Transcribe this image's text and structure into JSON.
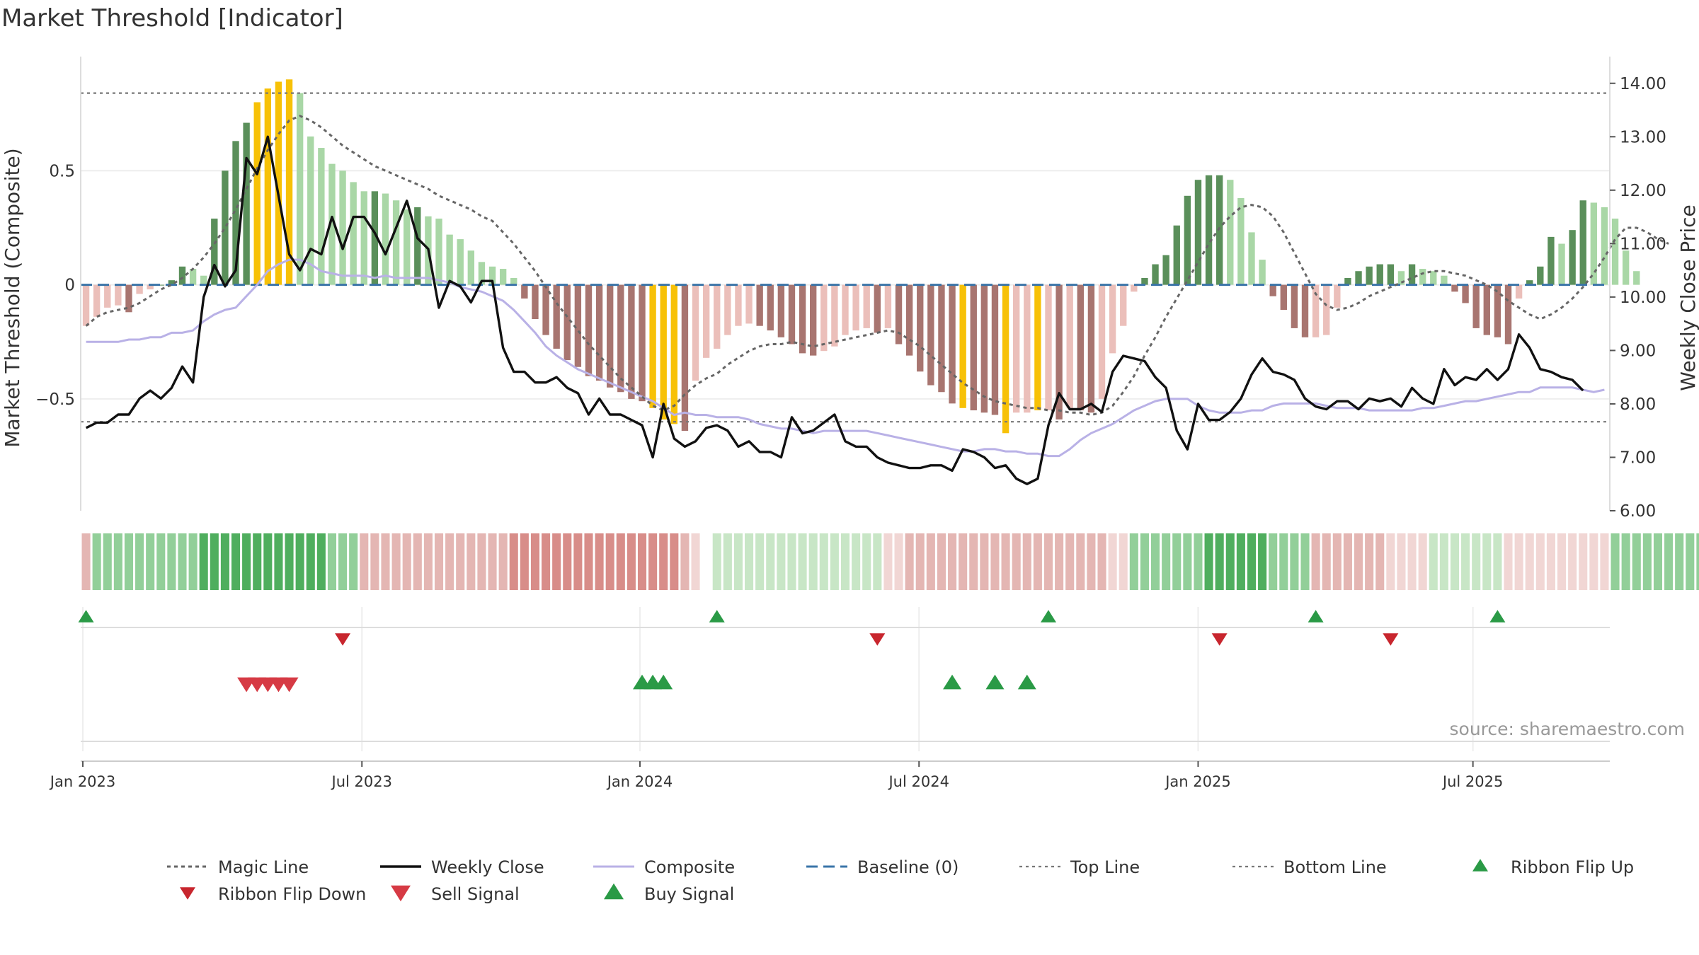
{
  "title": "Market Threshold [Indicator]",
  "source": "source: sharemaestro.com",
  "colors": {
    "green_strong": "#5a8f5a",
    "green_light": "#a9d7a6",
    "red_strong": "#a87570",
    "red_light": "#ebbfba",
    "yellow": "#f7c107",
    "close_line": "#111111",
    "composite_line": "#b9b1e6",
    "magic_line": "#666666",
    "baseline": "#3a74a8",
    "signal_up": "#2a9a46",
    "signal_down": "#d63a44"
  },
  "chart_data": {
    "type": "bar",
    "title": "Market Threshold [Indicator]",
    "ylabel_left": "Market Threshold (Composite)",
    "ylabel_right": "Weekly Close Price",
    "ylim_left": [
      -0.99,
      1.0
    ],
    "ylim_right": [
      6.0,
      14.5
    ],
    "yticks_left": [
      "0.5",
      "0",
      "−0.5"
    ],
    "yticks_left_values": [
      0.5,
      0,
      -0.5
    ],
    "yticks_right": [
      "6.00",
      "7.00",
      "8.00",
      "9.00",
      "10.00",
      "11.00",
      "12.00",
      "13.00",
      "14.00"
    ],
    "x_ticks": [
      "Jan 2023",
      "Jul 2023",
      "Jan 2024",
      "Jul 2024",
      "Jan 2025",
      "Jul 2025"
    ],
    "x_tick_weeks": [
      0.2,
      26.3,
      52.3,
      78.4,
      104.5,
      130.2
    ],
    "top_line": 0.84,
    "bottom_line": -0.6,
    "baseline": 0,
    "weeks": 143,
    "composite_bars": [
      -0.18,
      -0.14,
      -0.1,
      -0.09,
      -0.12,
      -0.04,
      -0.02,
      0.0,
      0.02,
      0.08,
      0.07,
      0.04,
      0.29,
      0.5,
      0.63,
      0.71,
      0.8,
      0.86,
      0.89,
      0.9,
      0.84,
      0.65,
      0.6,
      0.53,
      0.5,
      0.45,
      0.41,
      0.41,
      0.4,
      0.37,
      0.33,
      0.34,
      0.3,
      0.29,
      0.22,
      0.2,
      0.15,
      0.1,
      0.08,
      0.07,
      0.03,
      -0.06,
      -0.15,
      -0.22,
      -0.28,
      -0.33,
      -0.36,
      -0.4,
      -0.42,
      -0.45,
      -0.47,
      -0.5,
      -0.51,
      -0.54,
      -0.59,
      -0.61,
      -0.64,
      -0.42,
      -0.32,
      -0.28,
      -0.22,
      -0.18,
      -0.17,
      -0.18,
      -0.2,
      -0.23,
      -0.26,
      -0.3,
      -0.31,
      -0.29,
      -0.27,
      -0.22,
      -0.2,
      -0.19,
      -0.21,
      -0.19,
      -0.26,
      -0.31,
      -0.38,
      -0.44,
      -0.47,
      -0.52,
      -0.54,
      -0.55,
      -0.56,
      -0.57,
      -0.65,
      -0.56,
      -0.56,
      -0.55,
      -0.55,
      -0.59,
      -0.54,
      -0.55,
      -0.56,
      -0.5,
      -0.3,
      -0.18,
      -0.03,
      0.03,
      0.09,
      0.13,
      0.26,
      0.39,
      0.46,
      0.48,
      0.48,
      0.46,
      0.38,
      0.23,
      0.11,
      -0.05,
      -0.11,
      -0.19,
      -0.23,
      -0.23,
      -0.22,
      -0.1,
      0.03,
      0.06,
      0.08,
      0.09,
      0.09,
      0.06,
      0.09,
      0.07,
      0.06,
      0.04,
      -0.03,
      -0.08,
      -0.19,
      -0.22,
      -0.23,
      -0.26,
      -0.06,
      0.02,
      0.08,
      0.21,
      0.18,
      0.24,
      0.37,
      0.36,
      0.34,
      0.29,
      0.15,
      0.06
    ],
    "bar_highlight_weeks": [
      16,
      17,
      18,
      19,
      53,
      54,
      55,
      82,
      86,
      89
    ],
    "weekly_close": [
      7.55,
      7.65,
      7.65,
      7.8,
      7.8,
      8.1,
      8.25,
      8.1,
      8.3,
      8.7,
      8.4,
      10.0,
      10.6,
      10.2,
      10.5,
      12.6,
      12.3,
      13.0,
      11.9,
      10.8,
      10.5,
      10.9,
      10.8,
      11.5,
      10.9,
      11.5,
      11.5,
      11.2,
      10.8,
      11.3,
      11.8,
      11.1,
      10.9,
      9.8,
      10.3,
      10.2,
      9.9,
      10.3,
      10.3,
      9.05,
      8.6,
      8.6,
      8.4,
      8.4,
      8.5,
      8.3,
      8.2,
      7.8,
      8.1,
      7.8,
      7.8,
      7.7,
      7.6,
      7.0,
      8.0,
      7.35,
      7.2,
      7.3,
      7.55,
      7.6,
      7.5,
      7.2,
      7.3,
      7.1,
      7.1,
      7.0,
      7.75,
      7.45,
      7.5,
      7.65,
      7.8,
      7.3,
      7.2,
      7.2,
      7.0,
      6.9,
      6.85,
      6.8,
      6.8,
      6.85,
      6.85,
      6.75,
      7.15,
      7.1,
      7.0,
      6.8,
      6.85,
      6.6,
      6.5,
      6.6,
      7.6,
      8.2,
      7.9,
      7.9,
      8.0,
      7.85,
      8.6,
      8.9,
      8.85,
      8.8,
      8.5,
      8.3,
      7.5,
      7.15,
      8.0,
      7.7,
      7.7,
      7.85,
      8.1,
      8.55,
      8.85,
      8.6,
      8.55,
      8.45,
      8.1,
      7.95,
      7.9,
      8.05,
      8.05,
      7.9,
      8.1,
      8.05,
      8.1,
      7.95,
      8.3,
      8.1,
      8.0,
      8.65,
      8.35,
      8.5,
      8.45,
      8.65,
      8.45,
      8.65,
      9.3,
      9.05,
      8.65,
      8.6,
      8.5,
      8.45,
      8.25
    ],
    "magic_line": [
      -0.18,
      -0.14,
      -0.12,
      -0.11,
      -0.1,
      -0.08,
      -0.05,
      -0.02,
      0.0,
      0.03,
      0.07,
      0.12,
      0.18,
      0.25,
      0.33,
      0.42,
      0.51,
      0.59,
      0.66,
      0.72,
      0.74,
      0.72,
      0.69,
      0.65,
      0.61,
      0.58,
      0.55,
      0.52,
      0.5,
      0.48,
      0.46,
      0.44,
      0.42,
      0.39,
      0.37,
      0.35,
      0.33,
      0.3,
      0.28,
      0.23,
      0.18,
      0.12,
      0.06,
      -0.01,
      -0.08,
      -0.14,
      -0.2,
      -0.26,
      -0.31,
      -0.36,
      -0.41,
      -0.45,
      -0.49,
      -0.53,
      -0.55,
      -0.53,
      -0.48,
      -0.44,
      -0.41,
      -0.39,
      -0.35,
      -0.32,
      -0.29,
      -0.27,
      -0.26,
      -0.26,
      -0.25,
      -0.26,
      -0.27,
      -0.26,
      -0.25,
      -0.24,
      -0.23,
      -0.22,
      -0.21,
      -0.2,
      -0.21,
      -0.24,
      -0.27,
      -0.31,
      -0.35,
      -0.39,
      -0.43,
      -0.46,
      -0.49,
      -0.51,
      -0.52,
      -0.53,
      -0.54,
      -0.54,
      -0.55,
      -0.55,
      -0.56,
      -0.56,
      -0.57,
      -0.56,
      -0.53,
      -0.47,
      -0.4,
      -0.31,
      -0.23,
      -0.14,
      -0.06,
      0.02,
      0.1,
      0.18,
      0.25,
      0.3,
      0.34,
      0.35,
      0.34,
      0.3,
      0.23,
      0.14,
      0.05,
      -0.04,
      -0.09,
      -0.11,
      -0.1,
      -0.08,
      -0.05,
      -0.03,
      -0.01,
      0.01,
      0.03,
      0.05,
      0.06,
      0.06,
      0.05,
      0.04,
      0.02,
      0.0,
      -0.03,
      -0.07,
      -0.1,
      -0.13,
      -0.15,
      -0.13,
      -0.1,
      -0.06,
      -0.01,
      0.05,
      0.12,
      0.2,
      0.25,
      0.25,
      0.23,
      0.2,
      0.18
    ],
    "composite_line": [
      -0.25,
      -0.25,
      -0.25,
      -0.25,
      -0.24,
      -0.24,
      -0.23,
      -0.23,
      -0.21,
      -0.21,
      -0.2,
      -0.16,
      -0.13,
      -0.11,
      -0.1,
      -0.05,
      0.0,
      0.06,
      0.09,
      0.11,
      0.11,
      0.09,
      0.06,
      0.05,
      0.04,
      0.04,
      0.04,
      0.03,
      0.04,
      0.03,
      0.03,
      0.03,
      0.03,
      0.02,
      0.01,
      -0.01,
      -0.02,
      -0.03,
      -0.05,
      -0.07,
      -0.11,
      -0.16,
      -0.21,
      -0.27,
      -0.31,
      -0.34,
      -0.37,
      -0.39,
      -0.41,
      -0.43,
      -0.45,
      -0.47,
      -0.49,
      -0.51,
      -0.54,
      -0.57,
      -0.56,
      -0.57,
      -0.57,
      -0.58,
      -0.58,
      -0.58,
      -0.59,
      -0.61,
      -0.62,
      -0.63,
      -0.63,
      -0.64,
      -0.65,
      -0.64,
      -0.64,
      -0.64,
      -0.64,
      -0.64,
      -0.65,
      -0.66,
      -0.67,
      -0.68,
      -0.69,
      -0.7,
      -0.71,
      -0.72,
      -0.73,
      -0.73,
      -0.72,
      -0.72,
      -0.73,
      -0.73,
      -0.74,
      -0.74,
      -0.75,
      -0.75,
      -0.72,
      -0.68,
      -0.65,
      -0.63,
      -0.61,
      -0.58,
      -0.55,
      -0.53,
      -0.51,
      -0.5,
      -0.5,
      -0.5,
      -0.53,
      -0.55,
      -0.56,
      -0.56,
      -0.56,
      -0.55,
      -0.55,
      -0.53,
      -0.52,
      -0.52,
      -0.52,
      -0.52,
      -0.53,
      -0.54,
      -0.54,
      -0.54,
      -0.55,
      -0.55,
      -0.55,
      -0.55,
      -0.55,
      -0.54,
      -0.54,
      -0.53,
      -0.52,
      -0.51,
      -0.51,
      -0.5,
      -0.49,
      -0.48,
      -0.47,
      -0.47,
      -0.45,
      -0.45,
      -0.45,
      -0.45,
      -0.46,
      -0.47,
      -0.46
    ],
    "ribbon": [
      -2,
      2,
      2,
      2,
      2,
      2,
      2,
      2,
      2,
      2,
      2,
      3,
      3,
      3,
      3,
      3,
      3,
      3,
      3,
      3,
      3,
      3,
      3,
      2,
      2,
      2,
      -2,
      -2,
      -2,
      -2,
      -2,
      -2,
      -2,
      -2,
      -2,
      -2,
      -2,
      -2,
      -2,
      -2,
      -3,
      -3,
      -3,
      -3,
      -3,
      -3,
      -3,
      -3,
      -3,
      -3,
      -3,
      -3,
      -3,
      -3,
      -3,
      -3,
      -2,
      -1,
      0,
      1,
      1,
      1,
      1,
      1,
      1,
      1,
      1,
      1,
      1,
      1,
      1,
      1,
      1,
      1,
      1,
      -1,
      -1,
      -2,
      -2,
      -2,
      -2,
      -2,
      -2,
      -2,
      -2,
      -2,
      -2,
      -2,
      -2,
      -2,
      -2,
      -2,
      -2,
      -2,
      -2,
      -2,
      -1,
      -1,
      2,
      2,
      2,
      2,
      2,
      2,
      2,
      3,
      3,
      3,
      3,
      3,
      3,
      2,
      2,
      2,
      2,
      -2,
      -2,
      -2,
      -2,
      -2,
      -2,
      -2,
      -1,
      -1,
      -1,
      -1,
      1,
      1,
      1,
      1,
      1,
      1,
      1,
      -1,
      -1,
      -1,
      -1,
      -1,
      -1,
      -1,
      -1,
      -1,
      -1,
      2,
      2,
      2,
      2,
      2,
      2,
      2,
      2,
      2,
      2,
      2
    ],
    "ribbon_flip_up_weeks": [
      0,
      59,
      90,
      115,
      132
    ],
    "ribbon_flip_down_weeks": [
      24,
      74,
      106,
      122
    ],
    "sell_signal_weeks": [
      15,
      16,
      17,
      18,
      19
    ],
    "buy_signal_weeks": [
      52,
      53,
      54,
      81,
      85,
      88
    ],
    "legend": [
      "Magic Line",
      "Weekly Close",
      "Composite",
      "Baseline (0)",
      "Top Line",
      "Bottom Line",
      "Ribbon Flip Up",
      "Ribbon Flip Down",
      "Sell Signal",
      "Buy Signal"
    ]
  }
}
